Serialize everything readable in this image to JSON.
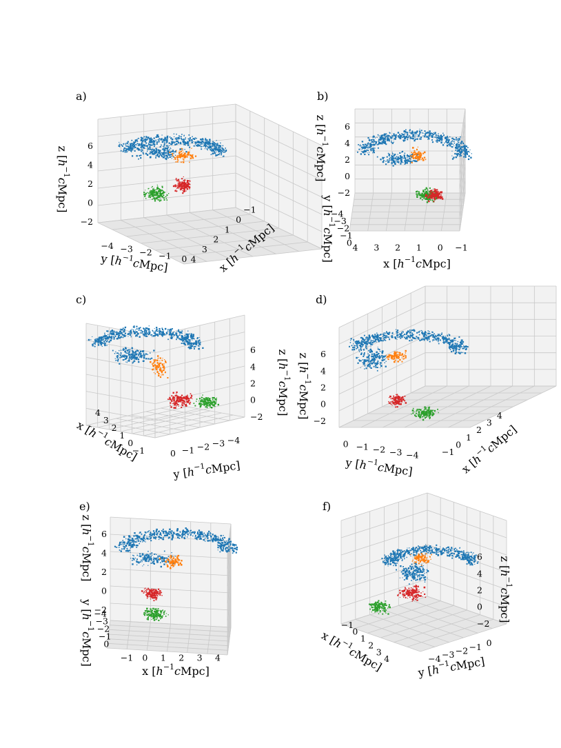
{
  "figure": {
    "colors": {
      "blue": "#1f77b4",
      "orange": "#ff7f0e",
      "green": "#2ca02c",
      "red": "#d62728",
      "pane": "#f2f2f2",
      "pane_dark": "#e6e6e6",
      "grid": "#c8c8c8"
    }
  },
  "chart_data": [
    {
      "panel": "a)",
      "type": "scatter",
      "xlabel": "x  [$h^{-1}c$Mpc]",
      "ylabel": "y  [$h^{-1}c$Mpc]",
      "zlabel": "z  [$h^{-1}c$Mpc]",
      "x_ticks": [
        "4",
        "3",
        "2",
        "1",
        "0",
        "−1"
      ],
      "y_ticks": [
        "−4",
        "−3",
        "−2",
        "−1",
        "0"
      ],
      "z_ticks": [
        "−2",
        "0",
        "2",
        "4",
        "6"
      ],
      "zlim": [
        -2,
        6
      ],
      "series": [
        "blue",
        "orange",
        "green",
        "red"
      ]
    },
    {
      "panel": "b)",
      "type": "scatter",
      "xlabel": "x  [$h^{-1}c$Mpc]",
      "ylabel": "y  [$h^{-1}c$Mpc]",
      "zlabel": "z  [$h^{-1}c$Mpc]",
      "x_ticks": [
        "4",
        "3",
        "2",
        "1",
        "0",
        "−1"
      ],
      "y_ticks": [
        "0",
        "−1",
        "−2",
        "−3",
        "−4"
      ],
      "z_ticks": [
        "−2",
        "0",
        "2",
        "4",
        "6"
      ],
      "zlim": [
        -2,
        6
      ],
      "series": [
        "blue",
        "orange",
        "green",
        "red"
      ]
    },
    {
      "panel": "c)",
      "type": "scatter",
      "xlabel": "x  [$h^{-1}c$Mpc]",
      "ylabel": "y  [$h^{-1}c$Mpc]",
      "zlabel": "z  [$h^{-1}c$Mpc]",
      "x_ticks": [
        "4",
        "3",
        "2",
        "1",
        "0",
        "−1"
      ],
      "y_ticks": [
        "0",
        "−1",
        "−2",
        "−3",
        "−4"
      ],
      "z_ticks": [
        "−2",
        "0",
        "2",
        "4",
        "6"
      ],
      "zlim": [
        -2,
        6
      ],
      "series": [
        "blue",
        "orange",
        "green",
        "red"
      ]
    },
    {
      "panel": "d)",
      "type": "scatter",
      "xlabel": "x  [$h^{-1}c$Mpc]",
      "ylabel": "y  [$h^{-1}c$Mpc]",
      "zlabel": "z  [$h^{-1}c$Mpc]",
      "x_ticks": [
        "−1",
        "0",
        "1",
        "2",
        "3",
        "4"
      ],
      "y_ticks": [
        "0",
        "−1",
        "−2",
        "−3",
        "−4"
      ],
      "z_ticks": [
        "−2",
        "0",
        "2",
        "4",
        "6"
      ],
      "zlim": [
        -2,
        6
      ],
      "series": [
        "blue",
        "orange",
        "green",
        "red"
      ]
    },
    {
      "panel": "e)",
      "type": "scatter",
      "xlabel": "x  [$h^{-1}c$Mpc]",
      "ylabel": "y  [$h^{-1}c$Mpc]",
      "zlabel": "z  [$h^{-1}c$Mpc]",
      "x_ticks": [
        "−1",
        "0",
        "1",
        "2",
        "3",
        "4"
      ],
      "y_ticks": [
        "0",
        "−1",
        "−2",
        "−3",
        "−4"
      ],
      "z_ticks": [
        "−2",
        "0",
        "2",
        "4",
        "6"
      ],
      "zlim": [
        -2,
        6
      ],
      "series": [
        "blue",
        "orange",
        "green",
        "red"
      ]
    },
    {
      "panel": "f)",
      "type": "scatter",
      "xlabel": "x  [$h^{-1}c$Mpc]",
      "ylabel": "y  [$h^{-1}c$Mpc]",
      "zlabel": "z  [$h^{-1}c$Mpc]",
      "x_ticks": [
        "−1",
        "0",
        "1",
        "2",
        "3",
        "4"
      ],
      "y_ticks": [
        "−4",
        "−3",
        "−2",
        "−1",
        "0"
      ],
      "z_ticks": [
        "−2",
        "0",
        "2",
        "4",
        "6"
      ],
      "zlim": [
        -2,
        6
      ],
      "series": [
        "blue",
        "orange",
        "green",
        "red"
      ]
    }
  ]
}
